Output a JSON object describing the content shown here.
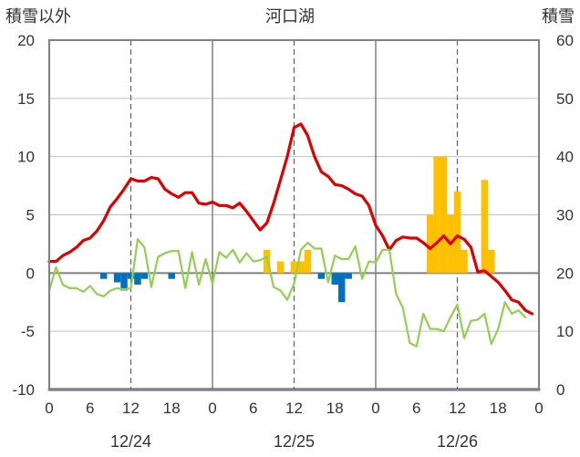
{
  "chart_data": {
    "type": "bar+line",
    "title": "河口湖",
    "left_axis_label": "積雪以外",
    "right_axis_label": "積雪",
    "left_ylim": [
      -10,
      20
    ],
    "left_yticks": [
      -10,
      -5,
      0,
      5,
      10,
      15,
      20
    ],
    "right_ylim": [
      0,
      60
    ],
    "right_yticks": [
      0,
      10,
      20,
      30,
      40,
      50,
      60
    ],
    "xlim_hours": [
      0,
      72
    ],
    "x_ticks": [
      {
        "h": 0,
        "label": "0"
      },
      {
        "h": 6,
        "label": "6"
      },
      {
        "h": 12,
        "label": "12"
      },
      {
        "h": 18,
        "label": "18"
      },
      {
        "h": 24,
        "label": "0"
      },
      {
        "h": 30,
        "label": "6"
      },
      {
        "h": 36,
        "label": "12"
      },
      {
        "h": 42,
        "label": "18"
      },
      {
        "h": 48,
        "label": "0"
      },
      {
        "h": 54,
        "label": "6"
      },
      {
        "h": 60,
        "label": "12"
      },
      {
        "h": 66,
        "label": "18"
      },
      {
        "h": 72,
        "label": "0"
      }
    ],
    "dates": [
      {
        "h": 12,
        "label": "12/24"
      },
      {
        "h": 36,
        "label": "12/25"
      },
      {
        "h": 60,
        "label": "12/26"
      }
    ],
    "grid": {
      "solid_at_hours": [
        24,
        48
      ],
      "dashed_at_hours": [
        12,
        36,
        60
      ]
    },
    "series": [
      {
        "kind": "bar",
        "axis": "left",
        "color": "#0070c0",
        "points": [
          [
            8,
            -0.5
          ],
          [
            10,
            -0.8
          ],
          [
            11,
            -1.5
          ],
          [
            12,
            -0.5
          ],
          [
            13,
            -1.0
          ],
          [
            14,
            -0.5
          ],
          [
            18,
            -0.5
          ],
          [
            40,
            -0.5
          ],
          [
            42,
            -1.0
          ],
          [
            43,
            -2.5
          ],
          [
            44,
            -0.5
          ]
        ]
      },
      {
        "kind": "bar",
        "axis": "left",
        "color": "#ffc000",
        "points": [
          [
            32,
            2
          ],
          [
            34,
            1
          ],
          [
            36,
            1
          ],
          [
            37,
            1
          ],
          [
            38,
            2
          ],
          [
            56,
            5
          ],
          [
            57,
            10
          ],
          [
            58,
            10
          ],
          [
            59,
            5
          ],
          [
            60,
            7
          ],
          [
            61,
            2
          ],
          [
            64,
            8
          ],
          [
            65,
            2
          ]
        ]
      },
      {
        "kind": "line",
        "axis": "left",
        "color": "#e00000",
        "width": 3.2,
        "points": [
          [
            0,
            1
          ],
          [
            1,
            1
          ],
          [
            2,
            1.5
          ],
          [
            3,
            1.8
          ],
          [
            4,
            2.2
          ],
          [
            5,
            2.8
          ],
          [
            6,
            3
          ],
          [
            7,
            3.6
          ],
          [
            8,
            4.5
          ],
          [
            9,
            5.7
          ],
          [
            10,
            6.4
          ],
          [
            11,
            7.2
          ],
          [
            12,
            8.1
          ],
          [
            13,
            7.9
          ],
          [
            14,
            7.9
          ],
          [
            15,
            8.2
          ],
          [
            16,
            8.1
          ],
          [
            17,
            7.2
          ],
          [
            18,
            6.8
          ],
          [
            19,
            6.5
          ],
          [
            20,
            6.9
          ],
          [
            21,
            6.9
          ],
          [
            22,
            6.0
          ],
          [
            23,
            5.9
          ],
          [
            24,
            6.1
          ],
          [
            25,
            5.8
          ],
          [
            26,
            5.8
          ],
          [
            27,
            5.6
          ],
          [
            28,
            6
          ],
          [
            29,
            5.3
          ],
          [
            30,
            4.5
          ],
          [
            31,
            3.7
          ],
          [
            32,
            4.3
          ],
          [
            33,
            6.0
          ],
          [
            34,
            8.0
          ],
          [
            35,
            10.0
          ],
          [
            36,
            12.5
          ],
          [
            37,
            12.8
          ],
          [
            38,
            11.8
          ],
          [
            39,
            10.0
          ],
          [
            40,
            8.7
          ],
          [
            41,
            8.3
          ],
          [
            42,
            7.6
          ],
          [
            43,
            7.5
          ],
          [
            44,
            7.2
          ],
          [
            45,
            6.8
          ],
          [
            46,
            6.6
          ],
          [
            47,
            5.8
          ],
          [
            48,
            4.1
          ],
          [
            49,
            3.2
          ],
          [
            50,
            2.0
          ],
          [
            51,
            2.8
          ],
          [
            52,
            3.1
          ],
          [
            53,
            3.0
          ],
          [
            54,
            3.0
          ],
          [
            55,
            2.6
          ],
          [
            56,
            2.1
          ],
          [
            57,
            2.6
          ],
          [
            58,
            3.2
          ],
          [
            59,
            2.5
          ],
          [
            60,
            3.2
          ],
          [
            61,
            2.9
          ],
          [
            62,
            2.2
          ],
          [
            63,
            0.1
          ],
          [
            64,
            0.2
          ],
          [
            65,
            -0.3
          ],
          [
            66,
            -0.8
          ],
          [
            67,
            -1.5
          ],
          [
            68,
            -2.3
          ],
          [
            69,
            -2.5
          ],
          [
            70,
            -3.2
          ],
          [
            71,
            -3.5
          ]
        ]
      },
      {
        "kind": "line",
        "axis": "left",
        "color": "#92d050",
        "width": 2.2,
        "points": [
          [
            0,
            -1.5
          ],
          [
            1,
            0.5
          ],
          [
            2,
            -1
          ],
          [
            3,
            -1.3
          ],
          [
            4,
            -1.3
          ],
          [
            5,
            -1.6
          ],
          [
            6,
            -1.1
          ],
          [
            7,
            -1.8
          ],
          [
            8,
            -2.0
          ],
          [
            9,
            -1.5
          ],
          [
            10,
            -1.3
          ],
          [
            11,
            -1.4
          ],
          [
            12,
            -1.3
          ],
          [
            13,
            2.9
          ],
          [
            14,
            2.2
          ],
          [
            15,
            -1.2
          ],
          [
            16,
            1.4
          ],
          [
            17,
            1.7
          ],
          [
            18,
            1.9
          ],
          [
            19,
            1.9
          ],
          [
            20,
            -1.3
          ],
          [
            21,
            1.8
          ],
          [
            22,
            -1.0
          ],
          [
            23,
            1.2
          ],
          [
            24,
            -0.9
          ],
          [
            25,
            1.8
          ],
          [
            26,
            1.3
          ],
          [
            27,
            2.0
          ],
          [
            28,
            0.9
          ],
          [
            29,
            1.7
          ],
          [
            30,
            1.0
          ],
          [
            31,
            1.1
          ],
          [
            32,
            1.4
          ],
          [
            33,
            -1.2
          ],
          [
            34,
            -1.5
          ],
          [
            35,
            -2.3
          ],
          [
            36,
            -0.9
          ],
          [
            37,
            2.0
          ],
          [
            38,
            2.6
          ],
          [
            39,
            2.1
          ],
          [
            40,
            2.1
          ],
          [
            41,
            -0.8
          ],
          [
            42,
            1.5
          ],
          [
            43,
            1.2
          ],
          [
            44,
            1.2
          ],
          [
            45,
            2.3
          ],
          [
            46,
            -0.5
          ],
          [
            47,
            1.0
          ],
          [
            48,
            0.9
          ],
          [
            49,
            2.0
          ],
          [
            50,
            2.0
          ],
          [
            51,
            -1.8
          ],
          [
            52,
            -3.0
          ],
          [
            53,
            -6.0
          ],
          [
            54,
            -6.3
          ],
          [
            55,
            -3.5
          ],
          [
            56,
            -4.8
          ],
          [
            57,
            -4.8
          ],
          [
            58,
            -5.0
          ],
          [
            59,
            -3.8
          ],
          [
            60,
            -2.7
          ],
          [
            61,
            -5.6
          ],
          [
            62,
            -4.1
          ],
          [
            63,
            -4.0
          ],
          [
            64,
            -3.5
          ],
          [
            65,
            -6.1
          ],
          [
            66,
            -4.8
          ],
          [
            67,
            -2.5
          ],
          [
            68,
            -3.5
          ],
          [
            69,
            -3.2
          ],
          [
            70,
            -3.8
          ]
        ]
      },
      {
        "kind": "line",
        "axis": "left",
        "color": "#7030a0",
        "width": 3,
        "points": [
          [
            0,
            -10
          ],
          [
            72,
            -10
          ]
        ]
      }
    ]
  }
}
